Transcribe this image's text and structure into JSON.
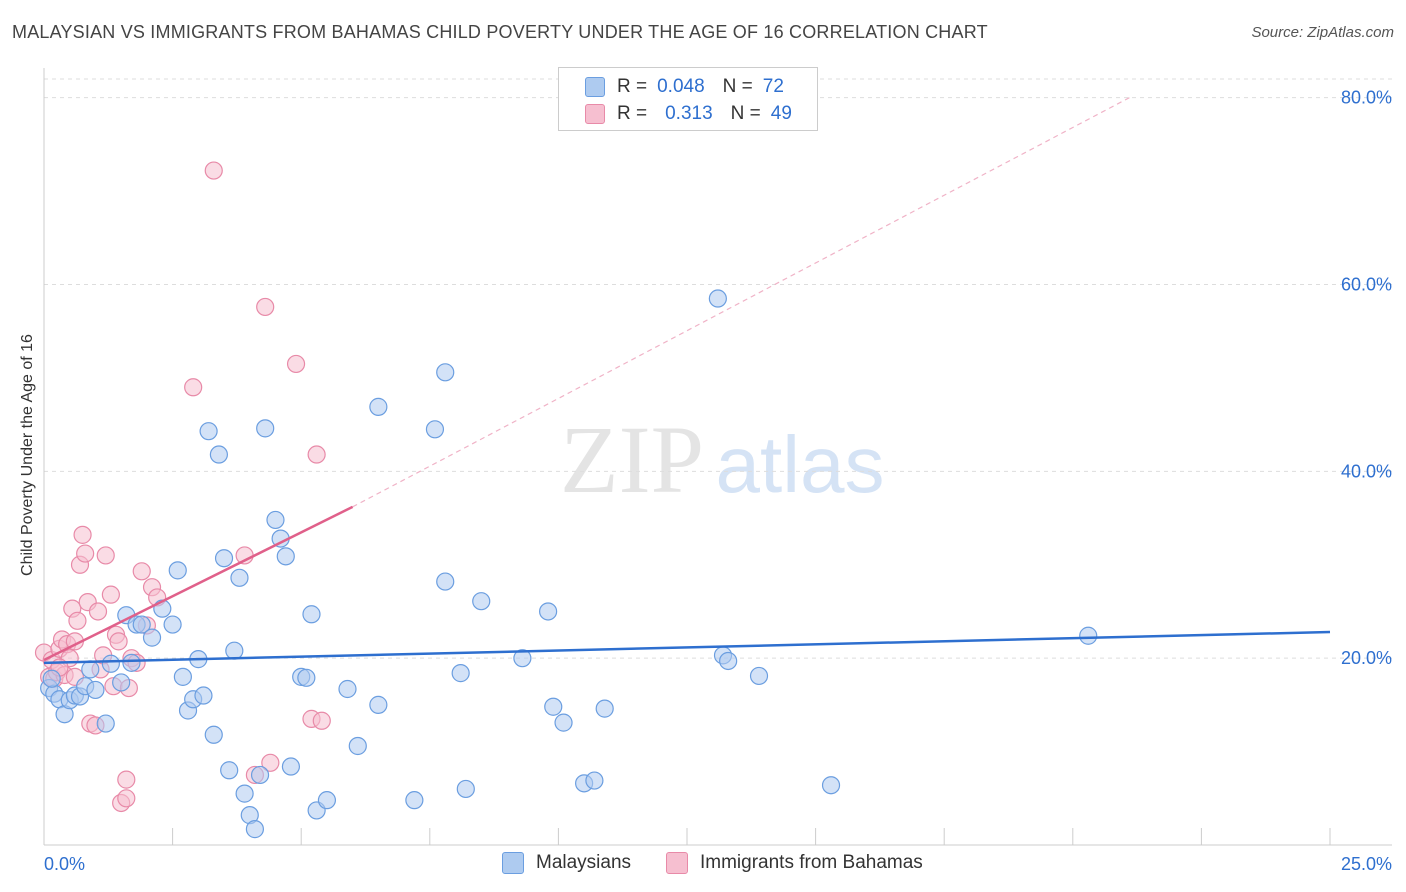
{
  "title": "MALAYSIAN VS IMMIGRANTS FROM BAHAMAS CHILD POVERTY UNDER THE AGE OF 16 CORRELATION CHART",
  "source": "Source: ZipAtlas.com",
  "legend": {
    "rows": [
      {
        "r_label": "R =",
        "r_value": "0.048",
        "n_label": "N =",
        "n_value": "72"
      },
      {
        "r_label": "R =",
        "r_value": "0.313",
        "n_label": "N =",
        "n_value": "49"
      }
    ]
  },
  "watermark": {
    "zip": "ZIP",
    "atlas": "atlas"
  },
  "colors": {
    "blue_fill": "#aecbf0",
    "blue_stroke": "#6b9ee0",
    "blue_line": "#2e6fcf",
    "pink_fill": "#f6bfd0",
    "pink_stroke": "#e88aa8",
    "pink_line": "#e0608a",
    "tick_text": "#2e6fcf",
    "grid": "#dddddd"
  },
  "chart_data": {
    "type": "scatter",
    "title": "MALAYSIAN VS IMMIGRANTS FROM BAHAMAS CHILD POVERTY UNDER THE AGE OF 16 CORRELATION CHART",
    "xlabel": "",
    "ylabel": "Child Poverty Under the Age of 16",
    "xlim": [
      0,
      25
    ],
    "ylim": [
      0,
      82
    ],
    "x_tick_labels": [
      "0.0%",
      "25.0%"
    ],
    "y_ticks": [
      20,
      40,
      60,
      80
    ],
    "y_tick_labels": [
      "20.0%",
      "40.0%",
      "60.0%",
      "80.0%"
    ],
    "grid": true,
    "legend": "bottom-center",
    "series": [
      {
        "name": "Malaysians",
        "R": 0.048,
        "N": 72,
        "trend": {
          "x": [
            0,
            25
          ],
          "y": [
            19.5,
            22.8
          ]
        },
        "points": [
          [
            0.1,
            16.8
          ],
          [
            0.2,
            16.2
          ],
          [
            0.3,
            15.6
          ],
          [
            0.4,
            14.0
          ],
          [
            0.5,
            15.5
          ],
          [
            0.6,
            16.0
          ],
          [
            0.7,
            15.9
          ],
          [
            0.8,
            17.0
          ],
          [
            0.9,
            18.8
          ],
          [
            1.0,
            16.6
          ],
          [
            1.2,
            13.0
          ],
          [
            1.3,
            19.4
          ],
          [
            1.5,
            17.4
          ],
          [
            1.6,
            24.6
          ],
          [
            1.7,
            19.5
          ],
          [
            1.8,
            23.6
          ],
          [
            1.9,
            23.6
          ],
          [
            2.1,
            22.2
          ],
          [
            2.3,
            25.3
          ],
          [
            2.5,
            23.6
          ],
          [
            2.6,
            29.4
          ],
          [
            2.7,
            18.0
          ],
          [
            2.8,
            14.4
          ],
          [
            2.9,
            15.6
          ],
          [
            3.0,
            19.9
          ],
          [
            3.1,
            16.0
          ],
          [
            3.2,
            44.3
          ],
          [
            3.3,
            11.8
          ],
          [
            3.4,
            41.8
          ],
          [
            3.5,
            30.7
          ],
          [
            3.6,
            8.0
          ],
          [
            3.7,
            20.8
          ],
          [
            3.8,
            28.6
          ],
          [
            3.9,
            5.5
          ],
          [
            4.0,
            3.2
          ],
          [
            4.1,
            1.7
          ],
          [
            4.2,
            7.5
          ],
          [
            4.3,
            44.6
          ],
          [
            4.5,
            34.8
          ],
          [
            4.6,
            32.8
          ],
          [
            4.7,
            30.9
          ],
          [
            4.8,
            8.4
          ],
          [
            5.0,
            18.0
          ],
          [
            5.1,
            17.9
          ],
          [
            5.2,
            24.7
          ],
          [
            5.3,
            3.7
          ],
          [
            5.5,
            4.8
          ],
          [
            5.9,
            16.7
          ],
          [
            6.1,
            10.6
          ],
          [
            6.5,
            15.0
          ],
          [
            6.5,
            46.9
          ],
          [
            7.2,
            4.8
          ],
          [
            7.6,
            44.5
          ],
          [
            7.8,
            50.6
          ],
          [
            7.8,
            28.2
          ],
          [
            8.1,
            18.4
          ],
          [
            8.2,
            6.0
          ],
          [
            8.5,
            26.1
          ],
          [
            9.3,
            20.0
          ],
          [
            9.8,
            25.0
          ],
          [
            9.9,
            14.8
          ],
          [
            10.1,
            13.1
          ],
          [
            10.5,
            6.6
          ],
          [
            10.7,
            6.9
          ],
          [
            10.9,
            14.6
          ],
          [
            13.1,
            58.5
          ],
          [
            13.2,
            20.3
          ],
          [
            13.3,
            19.7
          ],
          [
            13.9,
            18.1
          ],
          [
            15.3,
            6.4
          ],
          [
            20.3,
            22.4
          ],
          [
            0.15,
            17.8
          ]
        ]
      },
      {
        "name": "Immigrants from Bahamas",
        "R": 0.313,
        "N": 49,
        "trend_solid": {
          "x": [
            0,
            6.0
          ],
          "y": [
            19.8,
            36.2
          ]
        },
        "trend_dashed": {
          "x": [
            6.0,
            21.1
          ],
          "y": [
            36.2,
            80.0
          ]
        },
        "points": [
          [
            0.0,
            20.6
          ],
          [
            0.1,
            18.0
          ],
          [
            0.15,
            19.8
          ],
          [
            0.2,
            17.8
          ],
          [
            0.25,
            18.5
          ],
          [
            0.3,
            21.0
          ],
          [
            0.35,
            22.0
          ],
          [
            0.4,
            18.2
          ],
          [
            0.45,
            21.5
          ],
          [
            0.5,
            20.0
          ],
          [
            0.55,
            25.3
          ],
          [
            0.6,
            21.8
          ],
          [
            0.65,
            24.0
          ],
          [
            0.7,
            30.0
          ],
          [
            0.75,
            33.2
          ],
          [
            0.8,
            31.2
          ],
          [
            0.85,
            26.0
          ],
          [
            0.9,
            13.0
          ],
          [
            1.0,
            12.8
          ],
          [
            1.05,
            25.0
          ],
          [
            1.1,
            18.8
          ],
          [
            1.15,
            20.3
          ],
          [
            1.2,
            31.0
          ],
          [
            1.3,
            26.8
          ],
          [
            1.35,
            17.0
          ],
          [
            1.4,
            22.5
          ],
          [
            1.45,
            21.8
          ],
          [
            1.5,
            4.5
          ],
          [
            1.6,
            7.0
          ],
          [
            1.65,
            16.8
          ],
          [
            1.7,
            20.0
          ],
          [
            1.8,
            19.5
          ],
          [
            1.9,
            29.3
          ],
          [
            2.0,
            23.5
          ],
          [
            2.1,
            27.6
          ],
          [
            2.2,
            26.5
          ],
          [
            2.9,
            49.0
          ],
          [
            3.3,
            72.2
          ],
          [
            3.9,
            31.0
          ],
          [
            4.1,
            7.5
          ],
          [
            4.3,
            57.6
          ],
          [
            4.4,
            8.8
          ],
          [
            4.9,
            51.5
          ],
          [
            5.2,
            13.5
          ],
          [
            5.3,
            41.8
          ],
          [
            5.4,
            13.3
          ],
          [
            1.6,
            5.0
          ],
          [
            0.3,
            19.0
          ],
          [
            0.6,
            18.0
          ]
        ]
      }
    ]
  },
  "bottom_legend": [
    {
      "label": "Malaysians"
    },
    {
      "label": "Immigrants from Bahamas"
    }
  ]
}
